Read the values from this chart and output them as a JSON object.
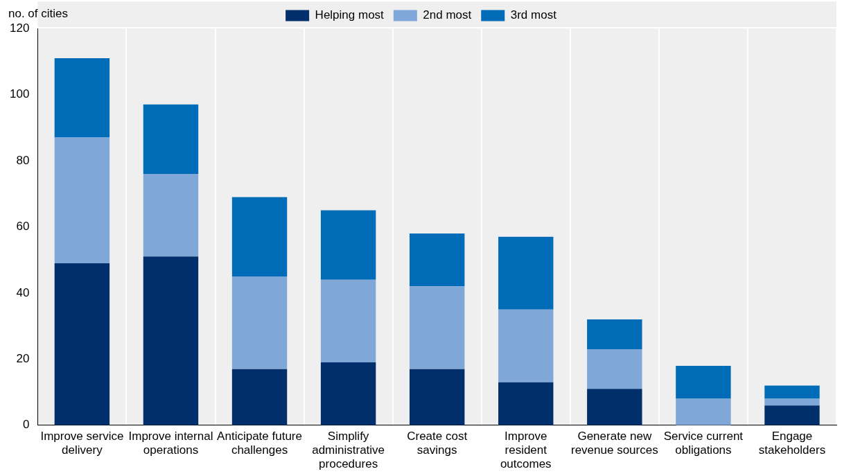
{
  "chart_data": {
    "type": "bar",
    "stacked": true,
    "ylabel": "no. of cities",
    "categories": [
      "Improve service delivery",
      "Improve internal operations",
      "Anticipate future challenges",
      "Simplify administrative procedures",
      "Create cost savings",
      "Improve resident outcomes",
      "Generate new revenue sources",
      "Service current obligations",
      "Engage stakeholders"
    ],
    "series": [
      {
        "name": "Helping most",
        "color": "#002f6c",
        "values": [
          49,
          51,
          17,
          19,
          17,
          13,
          11,
          0,
          6
        ]
      },
      {
        "name": "2nd most",
        "color": "#7fa8d9",
        "values": [
          38,
          25,
          28,
          25,
          25,
          22,
          12,
          8,
          2
        ]
      },
      {
        "name": "3rd most",
        "color": "#006bb6",
        "values": [
          24,
          21,
          24,
          21,
          16,
          22,
          9,
          10,
          4
        ]
      }
    ],
    "ylim": [
      0,
      120
    ],
    "yticks": [
      0,
      20,
      40,
      60,
      80,
      100,
      120
    ],
    "grid": "x",
    "legend": "top"
  }
}
